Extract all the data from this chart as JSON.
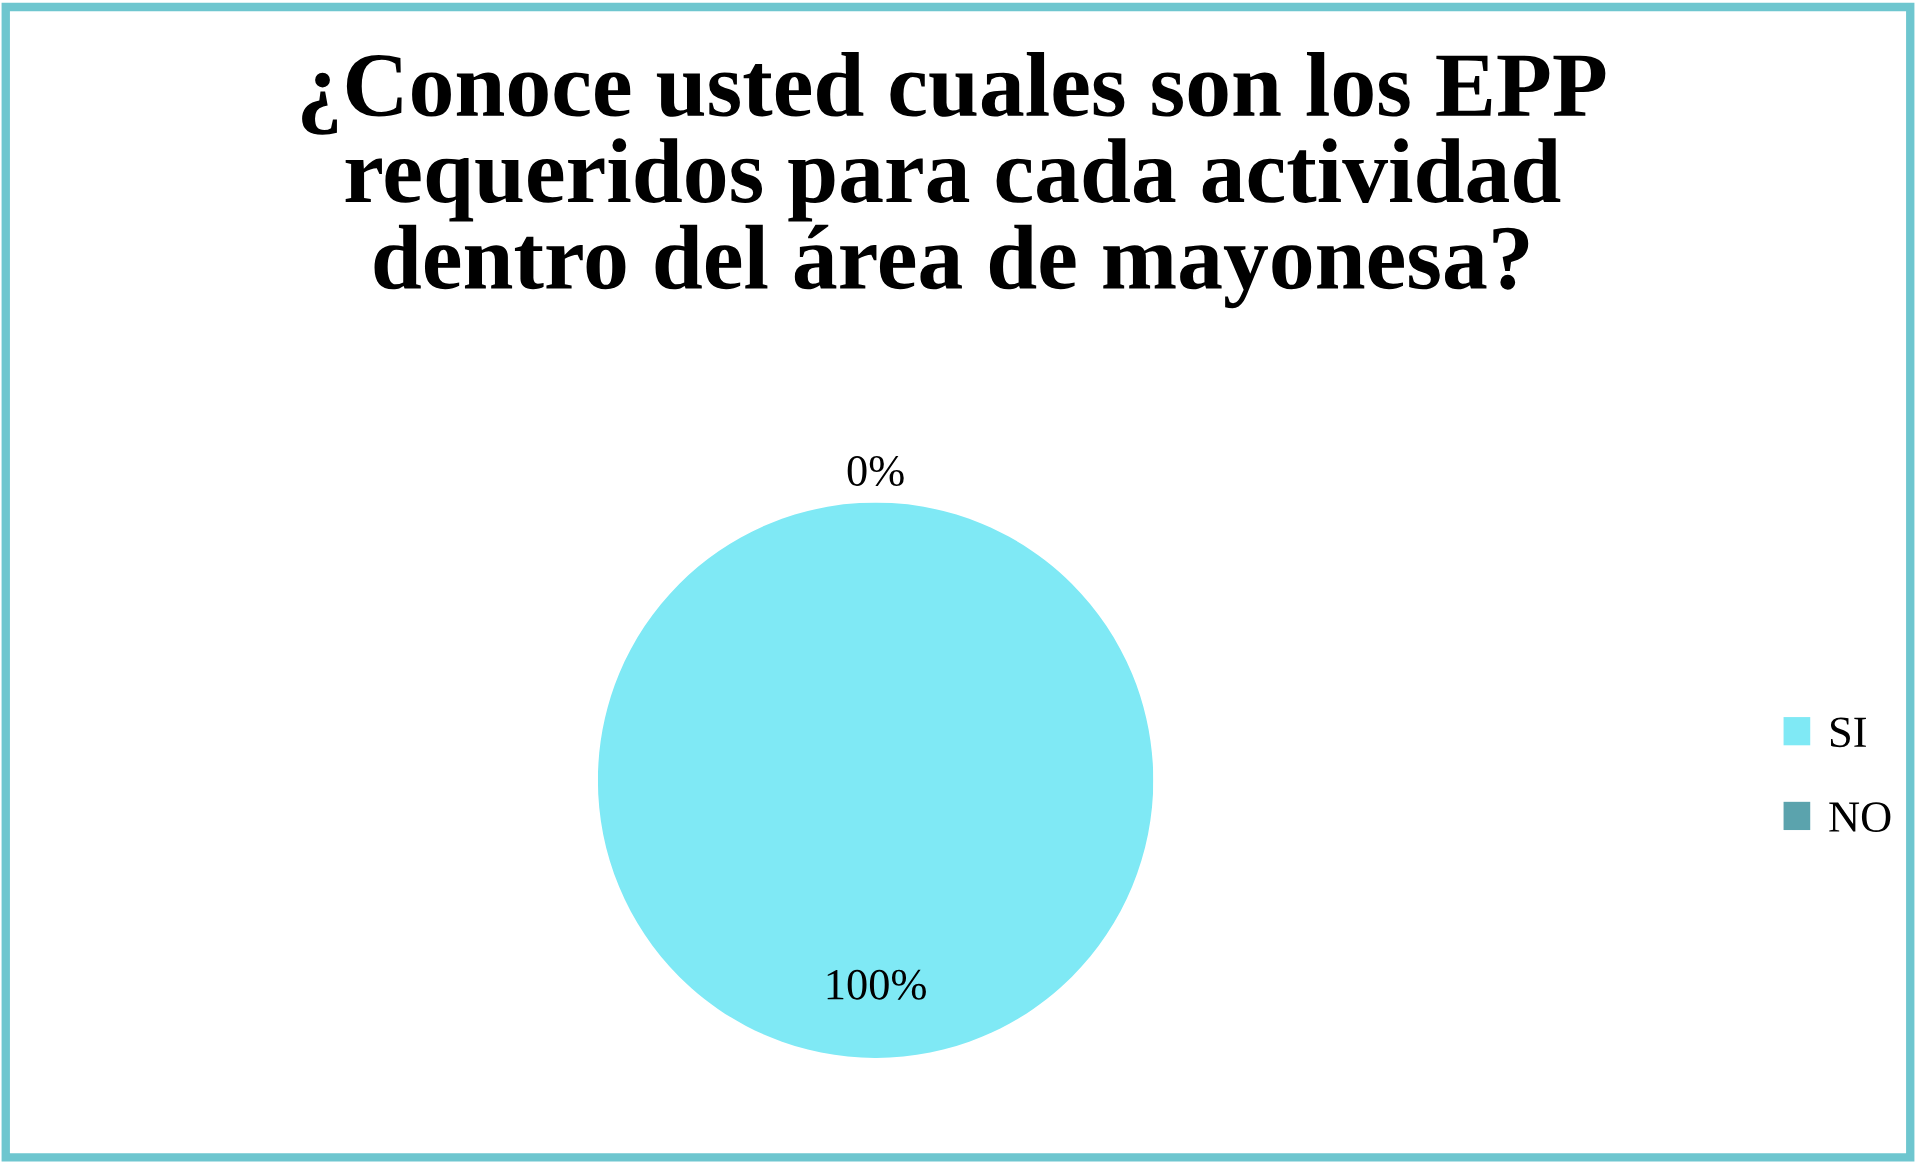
{
  "chart_data": {
    "type": "pie",
    "title": "¿Conoce usted cuales son los EPP requeridos para cada actividad dentro del área de mayonesa?",
    "categories": [
      "SI",
      "NO"
    ],
    "values": [
      100,
      0
    ],
    "colors": [
      "#7fe9f5",
      "#5ba3ad"
    ],
    "value_labels": [
      "100%",
      "0%"
    ],
    "legend": "right"
  }
}
